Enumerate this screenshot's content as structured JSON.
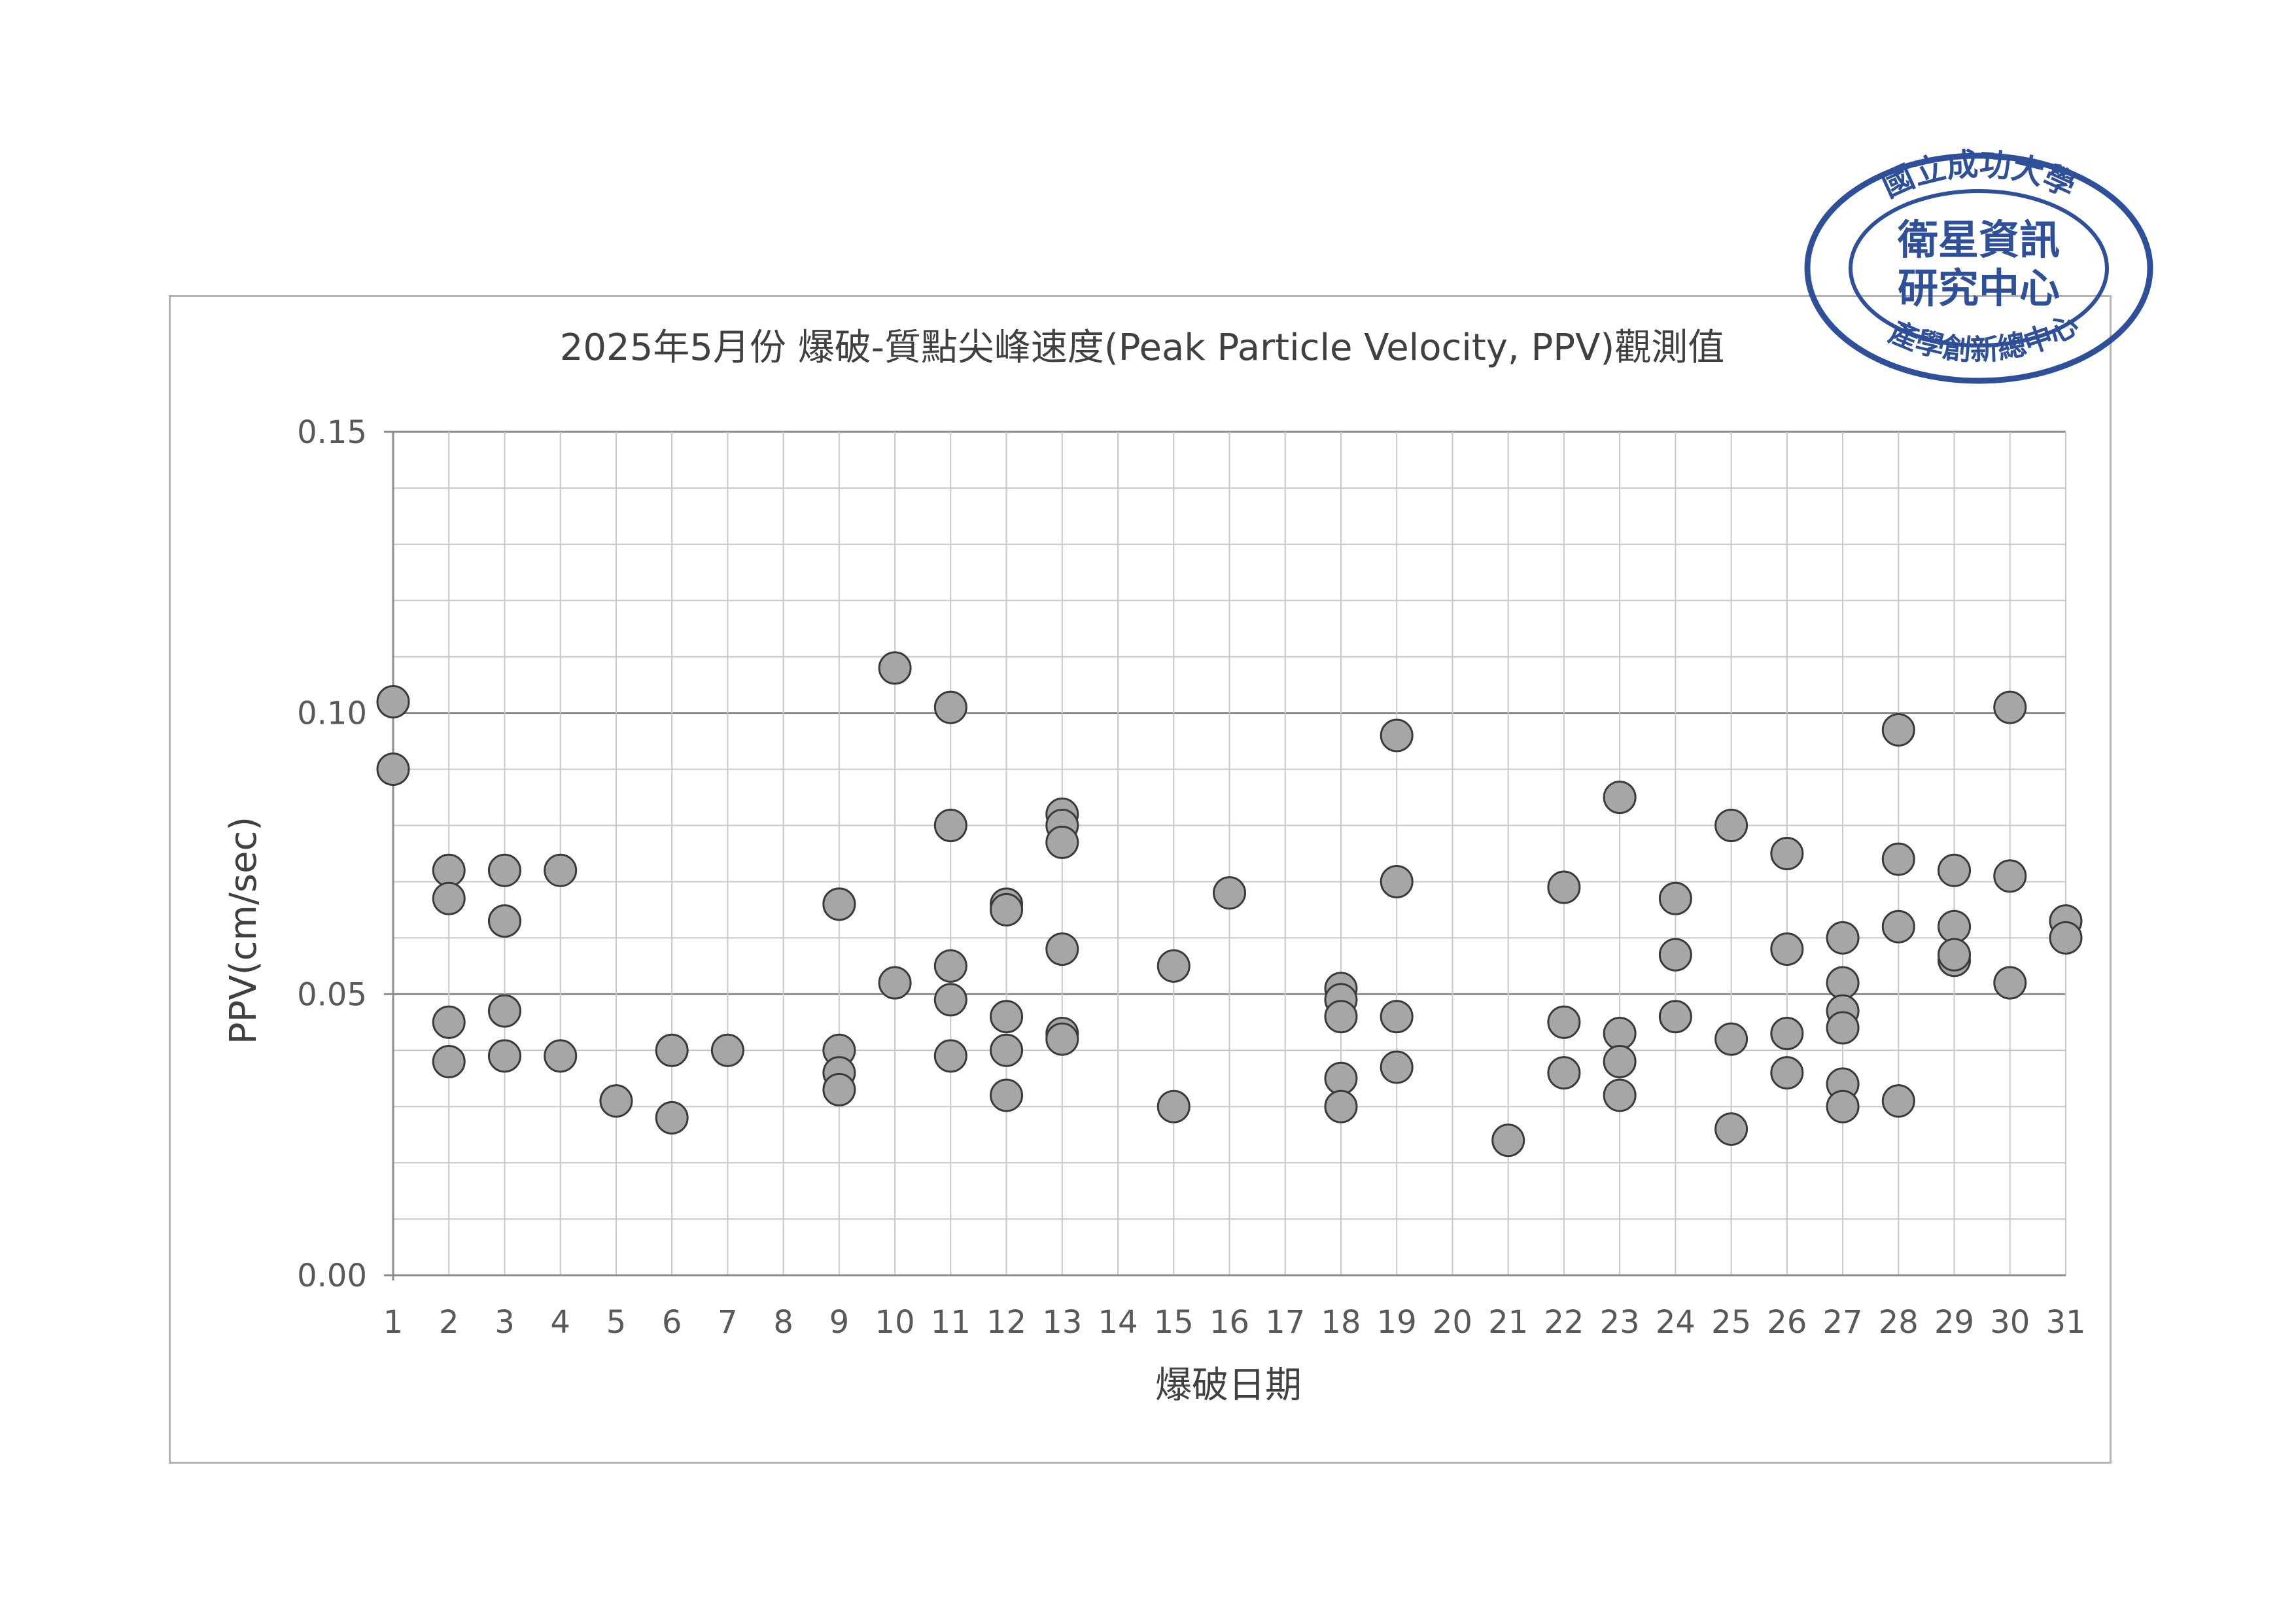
{
  "chart_data": {
    "type": "scatter",
    "title": "2025年5月份 爆破-質點尖峰速度(Peak Particle Velocity, PPV)觀測值",
    "xlabel": "爆破日期",
    "ylabel": "PPV(cm/sec)",
    "x_ticks": [
      1,
      2,
      3,
      4,
      5,
      6,
      7,
      8,
      9,
      10,
      11,
      12,
      13,
      14,
      15,
      16,
      17,
      18,
      19,
      20,
      21,
      22,
      23,
      24,
      25,
      26,
      27,
      28,
      29,
      30,
      31
    ],
    "y_ticks": [
      "0.00",
      "0.05",
      "0.10",
      "0.15"
    ],
    "xlim": [
      1,
      31
    ],
    "ylim": [
      0,
      0.15
    ],
    "grid": true,
    "legend": "none",
    "marker_color": "#a6a6a6",
    "marker_edge": "#3a3a3a",
    "series": [
      {
        "points": [
          [
            1,
            0.102
          ],
          [
            1,
            0.09
          ],
          [
            2,
            0.072
          ],
          [
            2,
            0.067
          ],
          [
            2,
            0.045
          ],
          [
            2,
            0.038
          ],
          [
            3,
            0.072
          ],
          [
            3,
            0.063
          ],
          [
            3,
            0.047
          ],
          [
            3,
            0.039
          ],
          [
            4,
            0.072
          ],
          [
            4,
            0.039
          ],
          [
            5,
            0.031
          ],
          [
            6,
            0.04
          ],
          [
            6,
            0.028
          ],
          [
            7,
            0.04
          ],
          [
            9,
            0.066
          ],
          [
            9,
            0.066
          ],
          [
            9,
            0.04
          ],
          [
            9,
            0.036
          ],
          [
            9,
            0.033
          ],
          [
            10,
            0.108
          ],
          [
            10,
            0.052
          ],
          [
            11,
            0.101
          ],
          [
            11,
            0.08
          ],
          [
            11,
            0.055
          ],
          [
            11,
            0.049
          ],
          [
            11,
            0.039
          ],
          [
            12,
            0.066
          ],
          [
            12,
            0.065
          ],
          [
            12,
            0.046
          ],
          [
            12,
            0.04
          ],
          [
            12,
            0.032
          ],
          [
            13,
            0.082
          ],
          [
            13,
            0.08
          ],
          [
            13,
            0.077
          ],
          [
            13,
            0.058
          ],
          [
            13,
            0.043
          ],
          [
            13,
            0.042
          ],
          [
            15,
            0.055
          ],
          [
            15,
            0.03
          ],
          [
            16,
            0.068
          ],
          [
            18,
            0.051
          ],
          [
            18,
            0.049
          ],
          [
            18,
            0.046
          ],
          [
            18,
            0.035
          ],
          [
            18,
            0.03
          ],
          [
            19,
            0.096
          ],
          [
            19,
            0.07
          ],
          [
            19,
            0.046
          ],
          [
            19,
            0.037
          ],
          [
            21,
            0.024
          ],
          [
            22,
            0.069
          ],
          [
            22,
            0.045
          ],
          [
            22,
            0.036
          ],
          [
            23,
            0.085
          ],
          [
            23,
            0.043
          ],
          [
            23,
            0.038
          ],
          [
            23,
            0.032
          ],
          [
            24,
            0.067
          ],
          [
            24,
            0.057
          ],
          [
            24,
            0.046
          ],
          [
            25,
            0.08
          ],
          [
            25,
            0.042
          ],
          [
            25,
            0.026
          ],
          [
            26,
            0.075
          ],
          [
            26,
            0.058
          ],
          [
            26,
            0.043
          ],
          [
            26,
            0.036
          ],
          [
            27,
            0.06
          ],
          [
            27,
            0.052
          ],
          [
            27,
            0.047
          ],
          [
            27,
            0.044
          ],
          [
            27,
            0.034
          ],
          [
            27,
            0.03
          ],
          [
            28,
            0.097
          ],
          [
            28,
            0.074
          ],
          [
            28,
            0.062
          ],
          [
            28,
            0.031
          ],
          [
            29,
            0.072
          ],
          [
            29,
            0.062
          ],
          [
            29,
            0.056
          ],
          [
            29,
            0.057
          ],
          [
            30,
            0.101
          ],
          [
            30,
            0.071
          ],
          [
            30,
            0.052
          ],
          [
            31,
            0.063
          ],
          [
            31,
            0.06
          ]
        ]
      }
    ]
  },
  "stamp": {
    "outer_text": "國立成功大學",
    "inner_line1": "衛星資訊",
    "inner_line2": "研究中心",
    "bottom_text": "產學創新總中心",
    "color": "#2e4f9a"
  }
}
